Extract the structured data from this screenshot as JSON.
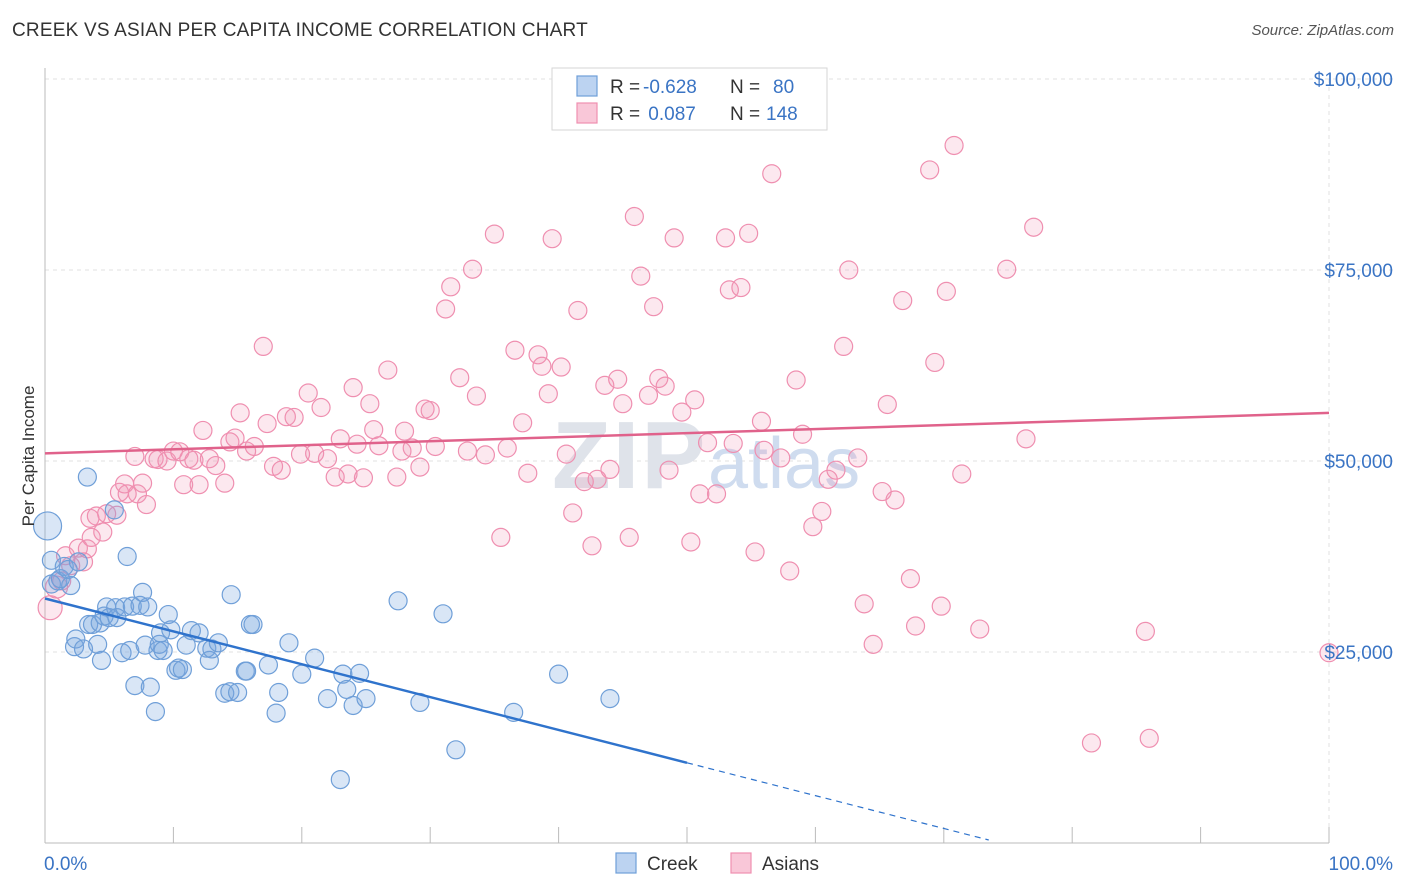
{
  "header": {
    "title": "CREEK VS ASIAN PER CAPITA INCOME CORRELATION CHART",
    "source": "Source: ZipAtlas.com"
  },
  "watermark": {
    "zip": "ZIP",
    "atlas": "atlas"
  },
  "legend_top": [
    {
      "r_label": "R =",
      "r_value": "-0.628",
      "n_label": "N =",
      "n_value": "80",
      "color": "#6f9fd8"
    },
    {
      "r_label": "R =",
      "r_value": " 0.087",
      "n_label": "N =",
      "n_value": "148",
      "color": "#ef8fb0"
    }
  ],
  "legend_bottom": [
    {
      "label": "Creek",
      "color": "#6f9fd8"
    },
    {
      "label": "Asians",
      "color": "#ef8fb0"
    }
  ],
  "chart_data": {
    "type": "scatter",
    "title": "CREEK VS ASIAN PER CAPITA INCOME CORRELATION CHART",
    "xlabel": "",
    "ylabel": "Per Capita Income",
    "xlim": [
      0,
      100
    ],
    "ylim": [
      0,
      100000
    ],
    "x_tick_labels": [
      "0.0%",
      "100.0%"
    ],
    "y_ticks": [
      25000,
      50000,
      75000,
      100000
    ],
    "y_tick_labels": [
      "$25,000",
      "$50,000",
      "$75,000",
      "$100,000"
    ],
    "grid": true,
    "legend": "top-center",
    "series": [
      {
        "name": "Creek",
        "color": "#6f9fd8",
        "line_color": "#2f73cc",
        "trend": {
          "x0": 0,
          "y0": 32000,
          "x1": 50,
          "y1": 10500,
          "dash_to_x": 73.5
        },
        "points": [
          [
            0.2,
            41500,
            14
          ],
          [
            0.5,
            37000,
            9
          ],
          [
            0.5,
            33900,
            9
          ],
          [
            1.0,
            34300,
            9
          ],
          [
            1.2,
            34600,
            9
          ],
          [
            1.5,
            36200,
            9
          ],
          [
            1.8,
            35800,
            9
          ],
          [
            2.0,
            33700,
            9
          ],
          [
            2.3,
            25700,
            9
          ],
          [
            2.4,
            26700,
            9
          ],
          [
            2.6,
            36800,
            9
          ],
          [
            3.0,
            25400,
            9
          ],
          [
            3.3,
            47900,
            9
          ],
          [
            3.4,
            28600,
            9
          ],
          [
            3.7,
            28600,
            9
          ],
          [
            4.1,
            26000,
            9
          ],
          [
            4.3,
            28800,
            9
          ],
          [
            4.4,
            23900,
            9
          ],
          [
            4.6,
            29700,
            9
          ],
          [
            4.8,
            30900,
            9
          ],
          [
            5.0,
            29500,
            9
          ],
          [
            5.4,
            43600,
            9
          ],
          [
            5.5,
            30800,
            9
          ],
          [
            5.6,
            29500,
            9
          ],
          [
            6.0,
            24900,
            9
          ],
          [
            6.2,
            30900,
            9
          ],
          [
            6.4,
            37500,
            9
          ],
          [
            6.6,
            25200,
            9
          ],
          [
            6.8,
            31000,
            9
          ],
          [
            7.0,
            20600,
            9
          ],
          [
            7.4,
            31100,
            9
          ],
          [
            7.6,
            32800,
            9
          ],
          [
            7.8,
            25900,
            9
          ],
          [
            8.0,
            30900,
            9
          ],
          [
            8.2,
            20400,
            9
          ],
          [
            8.6,
            17200,
            9
          ],
          [
            8.8,
            25200,
            9
          ],
          [
            8.9,
            26000,
            9
          ],
          [
            9.0,
            27500,
            9
          ],
          [
            9.2,
            25200,
            9
          ],
          [
            9.6,
            29900,
            9
          ],
          [
            9.8,
            27900,
            9
          ],
          [
            10.2,
            22600,
            9
          ],
          [
            10.4,
            22900,
            9
          ],
          [
            10.7,
            22700,
            9
          ],
          [
            11.0,
            25900,
            9
          ],
          [
            11.4,
            27800,
            9
          ],
          [
            12.0,
            27500,
            9
          ],
          [
            12.6,
            25500,
            9
          ],
          [
            12.8,
            23900,
            9
          ],
          [
            13.0,
            25400,
            9
          ],
          [
            13.5,
            26200,
            9
          ],
          [
            14.0,
            19600,
            9
          ],
          [
            14.4,
            19800,
            9
          ],
          [
            14.5,
            32500,
            9
          ],
          [
            15.0,
            19700,
            9
          ],
          [
            15.6,
            22500,
            9
          ],
          [
            15.7,
            22500,
            9
          ],
          [
            16.0,
            28600,
            9
          ],
          [
            16.2,
            28600,
            9
          ],
          [
            17.4,
            23300,
            9
          ],
          [
            18.0,
            17000,
            9
          ],
          [
            18.2,
            19700,
            9
          ],
          [
            19.0,
            26200,
            9
          ],
          [
            20.0,
            22100,
            9
          ],
          [
            21.0,
            24200,
            9
          ],
          [
            22.0,
            18900,
            9
          ],
          [
            23.0,
            8300,
            9
          ],
          [
            23.2,
            22100,
            9
          ],
          [
            23.5,
            20100,
            9
          ],
          [
            24.0,
            18000,
            9
          ],
          [
            24.5,
            22200,
            9
          ],
          [
            25.0,
            18900,
            9
          ],
          [
            27.5,
            31700,
            9
          ],
          [
            29.2,
            18400,
            9
          ],
          [
            31.0,
            30000,
            9
          ],
          [
            32.0,
            12200,
            9
          ],
          [
            36.5,
            17100,
            9
          ],
          [
            40.0,
            22100,
            9
          ],
          [
            44.0,
            18900,
            9
          ]
        ]
      },
      {
        "name": "Asians",
        "color": "#ef8fb0",
        "line_color": "#e0628b",
        "trend": {
          "x0": 0,
          "y0": 51000,
          "x1": 100,
          "y1": 56300
        },
        "points": [
          [
            0.4,
            30800,
            12
          ],
          [
            0.9,
            33500,
            11
          ],
          [
            1.3,
            34300,
            9
          ],
          [
            1.6,
            37600,
            9
          ],
          [
            2.0,
            36300,
            9
          ],
          [
            2.6,
            38600,
            9
          ],
          [
            3.0,
            36800,
            9
          ],
          [
            3.3,
            38500,
            9
          ],
          [
            3.5,
            42500,
            9
          ],
          [
            3.6,
            40000,
            9
          ],
          [
            4.0,
            42800,
            9
          ],
          [
            4.5,
            40700,
            9
          ],
          [
            4.8,
            43100,
            9
          ],
          [
            5.6,
            42900,
            9
          ],
          [
            5.8,
            45900,
            9
          ],
          [
            6.2,
            47000,
            9
          ],
          [
            6.4,
            45700,
            9
          ],
          [
            7.0,
            50600,
            9
          ],
          [
            7.2,
            45700,
            9
          ],
          [
            7.6,
            47100,
            9
          ],
          [
            7.9,
            44300,
            9
          ],
          [
            8.5,
            50300,
            9
          ],
          [
            8.8,
            50200,
            9
          ],
          [
            9.5,
            50000,
            9
          ],
          [
            10.0,
            51300,
            9
          ],
          [
            10.5,
            51200,
            9
          ],
          [
            10.8,
            46900,
            9
          ],
          [
            11.2,
            50300,
            9
          ],
          [
            11.6,
            50100,
            9
          ],
          [
            12.0,
            46900,
            9
          ],
          [
            12.3,
            54000,
            9
          ],
          [
            12.8,
            50300,
            9
          ],
          [
            13.3,
            49400,
            9
          ],
          [
            14.0,
            47100,
            9
          ],
          [
            14.4,
            52500,
            9
          ],
          [
            14.8,
            53000,
            9
          ],
          [
            15.2,
            56300,
            9
          ],
          [
            15.7,
            51300,
            9
          ],
          [
            16.3,
            51900,
            9
          ],
          [
            17.0,
            65000,
            9
          ],
          [
            17.3,
            54900,
            9
          ],
          [
            17.8,
            49300,
            9
          ],
          [
            18.4,
            48800,
            9
          ],
          [
            18.8,
            55800,
            9
          ],
          [
            19.4,
            55700,
            9
          ],
          [
            19.9,
            50900,
            9
          ],
          [
            20.5,
            58900,
            9
          ],
          [
            21.0,
            51000,
            9
          ],
          [
            21.5,
            57000,
            9
          ],
          [
            22.0,
            50300,
            9
          ],
          [
            22.6,
            47900,
            9
          ],
          [
            23.0,
            52900,
            9
          ],
          [
            23.6,
            48300,
            9
          ],
          [
            24.0,
            59600,
            9
          ],
          [
            24.3,
            52200,
            9
          ],
          [
            24.8,
            47800,
            9
          ],
          [
            25.3,
            57500,
            9
          ],
          [
            25.6,
            54100,
            9
          ],
          [
            26.0,
            52000,
            9
          ],
          [
            26.7,
            61900,
            9
          ],
          [
            27.4,
            47900,
            9
          ],
          [
            27.8,
            51300,
            9
          ],
          [
            28.0,
            53900,
            9
          ],
          [
            28.6,
            51700,
            9
          ],
          [
            29.2,
            49200,
            9
          ],
          [
            29.6,
            56800,
            9
          ],
          [
            30.0,
            56600,
            9
          ],
          [
            30.4,
            51900,
            9
          ],
          [
            31.2,
            69900,
            9
          ],
          [
            31.6,
            72800,
            9
          ],
          [
            32.3,
            60900,
            9
          ],
          [
            32.9,
            51300,
            9
          ],
          [
            33.3,
            75100,
            9
          ],
          [
            33.6,
            58500,
            9
          ],
          [
            34.3,
            50800,
            9
          ],
          [
            35.0,
            79700,
            9
          ],
          [
            35.5,
            40000,
            9
          ],
          [
            36.0,
            51700,
            9
          ],
          [
            36.6,
            64500,
            9
          ],
          [
            37.2,
            55000,
            9
          ],
          [
            37.6,
            48400,
            9
          ],
          [
            38.4,
            63900,
            9
          ],
          [
            38.7,
            62400,
            9
          ],
          [
            39.2,
            58800,
            9
          ],
          [
            39.5,
            79100,
            9
          ],
          [
            40.2,
            62300,
            9
          ],
          [
            40.6,
            50900,
            9
          ],
          [
            41.1,
            43200,
            9
          ],
          [
            41.5,
            69700,
            9
          ],
          [
            42.0,
            47300,
            9
          ],
          [
            42.6,
            38900,
            9
          ],
          [
            43.0,
            47600,
            9
          ],
          [
            43.6,
            59900,
            9
          ],
          [
            44.0,
            48900,
            9
          ],
          [
            44.6,
            60700,
            9
          ],
          [
            45.0,
            57500,
            9
          ],
          [
            45.5,
            40000,
            9
          ],
          [
            45.9,
            82000,
            9
          ],
          [
            46.4,
            74200,
            9
          ],
          [
            47.0,
            58600,
            9
          ],
          [
            47.4,
            70200,
            9
          ],
          [
            47.8,
            60800,
            9
          ],
          [
            48.3,
            59800,
            9
          ],
          [
            48.6,
            48800,
            9
          ],
          [
            49.0,
            79200,
            9
          ],
          [
            49.6,
            56400,
            9
          ],
          [
            50.3,
            39400,
            9
          ],
          [
            50.6,
            58000,
            9
          ],
          [
            51.0,
            45700,
            9
          ],
          [
            51.6,
            52400,
            9
          ],
          [
            52.3,
            45700,
            9
          ],
          [
            53.0,
            79200,
            9
          ],
          [
            53.3,
            72400,
            9
          ],
          [
            53.6,
            52300,
            9
          ],
          [
            54.2,
            72700,
            9
          ],
          [
            54.8,
            79800,
            9
          ],
          [
            55.3,
            38100,
            9
          ],
          [
            55.8,
            55200,
            9
          ],
          [
            56.0,
            51400,
            9
          ],
          [
            56.6,
            87600,
            9
          ],
          [
            57.3,
            50400,
            9
          ],
          [
            58.0,
            35600,
            9
          ],
          [
            58.5,
            60600,
            9
          ],
          [
            59.0,
            53500,
            9
          ],
          [
            59.8,
            41400,
            9
          ],
          [
            60.5,
            43400,
            9
          ],
          [
            61.0,
            47600,
            9
          ],
          [
            61.6,
            48800,
            9
          ],
          [
            62.2,
            65000,
            9
          ],
          [
            62.6,
            75000,
            9
          ],
          [
            63.3,
            50400,
            9
          ],
          [
            63.8,
            31300,
            9
          ],
          [
            64.5,
            26000,
            9
          ],
          [
            65.2,
            46000,
            9
          ],
          [
            65.6,
            57400,
            9
          ],
          [
            66.2,
            44900,
            9
          ],
          [
            66.8,
            71000,
            9
          ],
          [
            67.4,
            34600,
            9
          ],
          [
            67.8,
            28400,
            9
          ],
          [
            68.9,
            88100,
            9
          ],
          [
            69.3,
            62900,
            9
          ],
          [
            69.8,
            31000,
            9
          ],
          [
            70.2,
            72200,
            9
          ],
          [
            70.8,
            91300,
            9
          ],
          [
            71.4,
            48300,
            9
          ],
          [
            72.8,
            28000,
            9
          ],
          [
            74.9,
            75100,
            9
          ],
          [
            76.4,
            52900,
            9
          ],
          [
            77.0,
            80600,
            9
          ],
          [
            81.5,
            13100,
            9
          ],
          [
            85.7,
            27700,
            9
          ],
          [
            86.0,
            13700,
            9
          ],
          [
            100.0,
            24900,
            9
          ]
        ]
      }
    ]
  }
}
